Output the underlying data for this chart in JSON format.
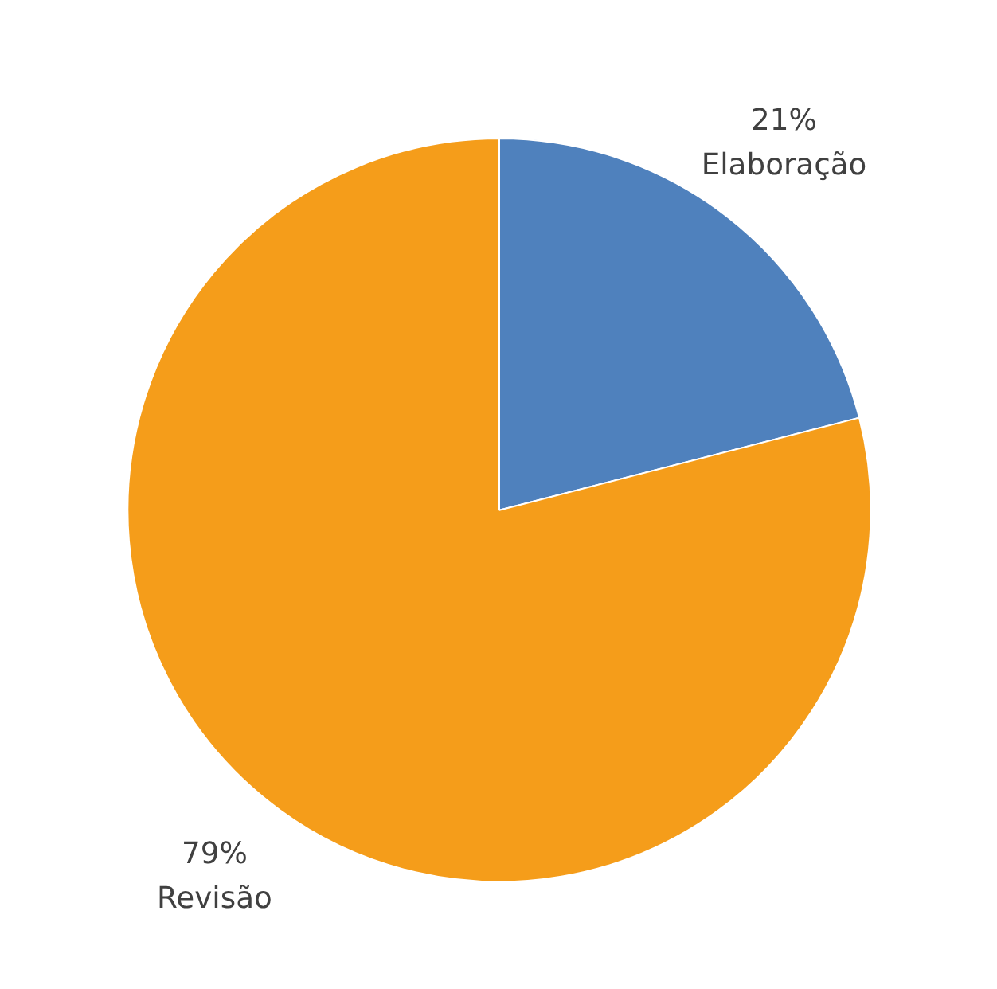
{
  "chart_data": {
    "type": "pie",
    "categories": [
      "Elaboração",
      "Revisão"
    ],
    "values": [
      21,
      79
    ],
    "colors": [
      "#4f81bd",
      "#f59d1a"
    ],
    "value_labels": [
      "21%",
      "79%"
    ]
  }
}
